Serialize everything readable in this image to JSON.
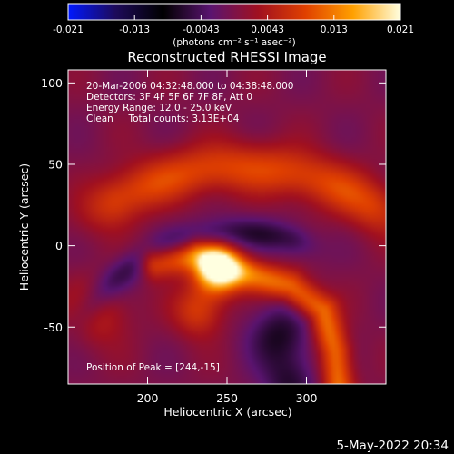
{
  "chart_data": {
    "type": "heatmap",
    "title": "Reconstructed RHESSI Image",
    "xlabel": "Heliocentric X (arcsec)",
    "ylabel": "Heliocentric Y (arcsec)",
    "xlim": [
      150,
      350
    ],
    "ylim": [
      -85,
      108
    ],
    "x_ticks": [
      200,
      250,
      300
    ],
    "y_ticks": [
      -50,
      0,
      50,
      100
    ],
    "colorbar": {
      "range": [
        -0.021,
        0.021
      ],
      "ticks": [
        "-0.021",
        "-0.013",
        "-0.0043",
        "0.0043",
        "0.013",
        "0.021"
      ],
      "units_label": "(photons cm⁻² s⁻¹ asec⁻²)",
      "colormap": [
        "#0018ff",
        "#1d0a5a",
        "#000000",
        "#5a1470",
        "#a01020",
        "#e04000",
        "#ffa000",
        "#ffffe0"
      ]
    },
    "info_lines": [
      "20-Mar-2006 04:32:48.000 to 04:38:48.000",
      "Detectors: 3F 4F 5F 6F 7F 8F, Att 0",
      "Energy Range: 12.0 - 25.0 keV",
      "Clean     Total counts: 3.13E+04"
    ],
    "peak_text": "Position of Peak = [244,-15]",
    "peak": {
      "x": 244,
      "y": -15,
      "value": 0.021
    },
    "features": [
      {
        "kind": "arc",
        "center": [
          258,
          -112
        ],
        "radius": 160,
        "angle_range": [
          60,
          118
        ],
        "width": 22,
        "value": 0.009
      },
      {
        "kind": "ridge",
        "points": [
          [
            205,
            -10
          ],
          [
            230,
            -5
          ],
          [
            255,
            -15
          ],
          [
            290,
            -25
          ],
          [
            310,
            -40
          ],
          [
            318,
            -65
          ],
          [
            320,
            -85
          ]
        ],
        "width": 14,
        "value": 0.012
      },
      {
        "kind": "blob",
        "center": [
          244,
          -15
        ],
        "sigma": 10,
        "value": 0.021
      },
      {
        "kind": "blob",
        "center": [
          232,
          -40
        ],
        "sigma": 11,
        "value": 0.008
      },
      {
        "kind": "blob",
        "center": [
          168,
          -40
        ],
        "sigma": 14,
        "value": 0.006
      },
      {
        "kind": "arc",
        "center": [
          258,
          -112
        ],
        "radius": 120,
        "angle_range": [
          75,
          140
        ],
        "width": 14,
        "value": -0.006
      },
      {
        "kind": "blob",
        "center": [
          283,
          -55
        ],
        "sigma": 14,
        "value": -0.007
      },
      {
        "kind": "blob",
        "center": [
          290,
          -85
        ],
        "sigma": 12,
        "value": -0.006
      }
    ]
  },
  "footer": {
    "date": "5-May-2022 20:34"
  }
}
